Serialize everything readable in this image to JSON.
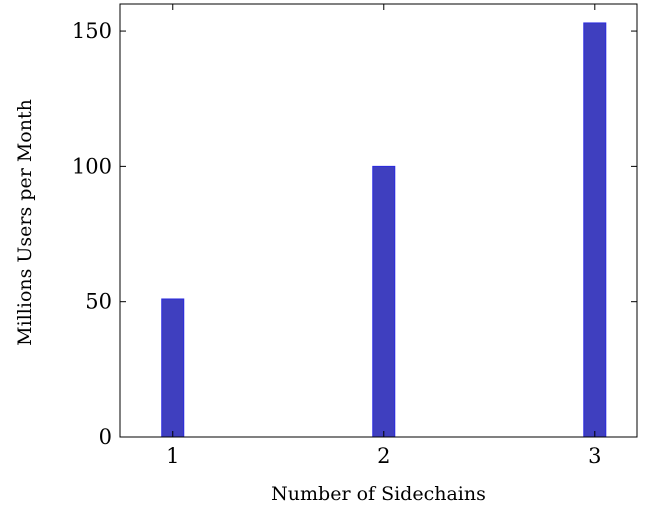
{
  "chart_data": {
    "type": "bar",
    "categories": [
      "1",
      "2",
      "3"
    ],
    "values": [
      51,
      100,
      153
    ],
    "title": "",
    "xlabel": "Number of Sidechains",
    "ylabel": "Millions Users per Month",
    "ylim": [
      0,
      160
    ],
    "xlim": [
      0.75,
      3.2
    ],
    "yticks": [
      0,
      50,
      100,
      150
    ],
    "xticks": [
      1,
      2,
      3
    ],
    "grid": false,
    "legend": "none",
    "colors": {
      "bar_fill": "#3f3fbf",
      "bar_stroke": "#2a2adf",
      "axis": "#000000"
    }
  }
}
